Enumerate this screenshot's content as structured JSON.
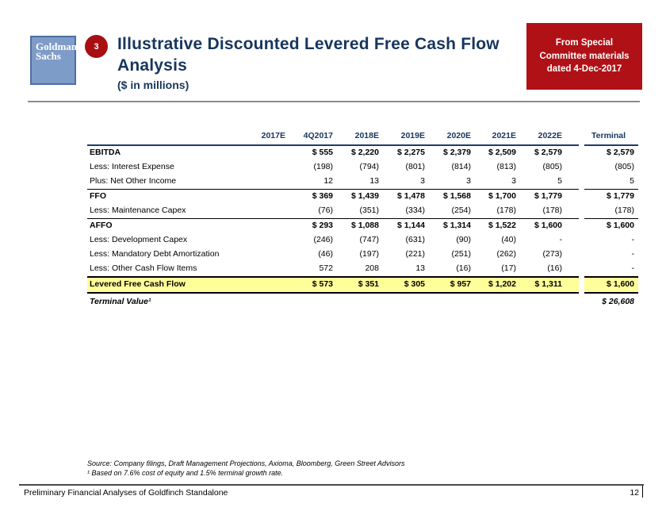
{
  "slide": {
    "logo_line1": "Goldman",
    "logo_line2": "Sachs",
    "badge_number": "3",
    "title": "Illustrative Discounted Levered Free Cash Flow Analysis",
    "subtitle": "($ in millions)",
    "callout": "From Special Committee materials dated 4-Dec-2017",
    "footer_source": "Source: Company filings, Draft Management Projections, Axioma, Bloomberg, Green Street Advisors",
    "footer_note": "¹ Based on 7.6% cost of equity and 1.5% terminal growth rate.",
    "bottom_left": "Preliminary Financial Analyses of Goldfinch Standalone",
    "page_number": "12"
  },
  "colors": {
    "navy": "#17365D",
    "header_line": "#1F3B6B",
    "highlight_yellow": "#FFFF99",
    "callout_red": "#B01116",
    "badge_red": "#A80E12",
    "logo_blue": "#7E9CC8",
    "logo_border_blue": "#4F6FA5",
    "top_rule_gray": "#8C8C8C",
    "footer_rule_gray": "#4A4A4A"
  },
  "table": {
    "columns": [
      "2017E",
      "4Q2017",
      "2018E",
      "2019E",
      "2020E",
      "2021E",
      "2022E"
    ],
    "terminal_label": "Terminal",
    "rows": [
      {
        "label": "EBITDA",
        "style": "bold",
        "rule_above": false,
        "values": [
          "",
          "$ 555",
          "$ 2,220",
          "$ 2,275",
          "$ 2,379",
          "$ 2,509",
          "$ 2,579"
        ],
        "terminal": "$ 2,579"
      },
      {
        "label": "Less: Interest Expense",
        "style": "normal",
        "rule_above": false,
        "values": [
          "",
          "(198)",
          "(794)",
          "(801)",
          "(814)",
          "(813)",
          "(805)"
        ],
        "terminal": "(805)"
      },
      {
        "label": "Plus: Net Other Income",
        "style": "normal",
        "rule_above": false,
        "values": [
          "",
          "12",
          "13",
          "3",
          "3",
          "3",
          "5"
        ],
        "terminal": "5"
      },
      {
        "label": "FFO",
        "style": "bold",
        "rule_above": true,
        "values": [
          "",
          "$ 369",
          "$ 1,439",
          "$ 1,478",
          "$ 1,568",
          "$ 1,700",
          "$ 1,779"
        ],
        "terminal": "$ 1,779"
      },
      {
        "label": "Less: Maintenance Capex",
        "style": "normal",
        "rule_above": false,
        "values": [
          "",
          "(76)",
          "(351)",
          "(334)",
          "(254)",
          "(178)",
          "(178)"
        ],
        "terminal": "(178)"
      },
      {
        "label": "AFFO",
        "style": "bold",
        "rule_above": true,
        "values": [
          "",
          "$ 293",
          "$ 1,088",
          "$ 1,144",
          "$ 1,314",
          "$ 1,522",
          "$ 1,600"
        ],
        "terminal": "$ 1,600"
      },
      {
        "label": "Less: Development Capex",
        "style": "normal",
        "rule_above": false,
        "values": [
          "",
          "(246)",
          "(747)",
          "(631)",
          "(90)",
          "(40)",
          "-"
        ],
        "terminal": "-"
      },
      {
        "label": "Less: Mandatory Debt Amortization",
        "style": "normal",
        "rule_above": false,
        "values": [
          "",
          "(46)",
          "(197)",
          "(221)",
          "(251)",
          "(262)",
          "(273)"
        ],
        "terminal": "-"
      },
      {
        "label": "Less: Other Cash Flow Items",
        "style": "normal",
        "rule_above": false,
        "values": [
          "",
          "572",
          "208",
          "13",
          "(16)",
          "(17)",
          "(16)"
        ],
        "terminal": "-"
      },
      {
        "label": "Levered Free Cash Flow",
        "style": "highlight",
        "rule_above": false,
        "values": [
          "",
          "$ 573",
          "$ 351",
          "$ 305",
          "$ 957",
          "$ 1,202",
          "$ 1,311"
        ],
        "terminal": "$ 1,600"
      },
      {
        "label": "Terminal Value¹",
        "style": "terminal-total",
        "rule_above": false,
        "values": [
          "",
          "",
          "",
          "",
          "",
          "",
          ""
        ],
        "terminal": "$ 26,608"
      }
    ]
  }
}
